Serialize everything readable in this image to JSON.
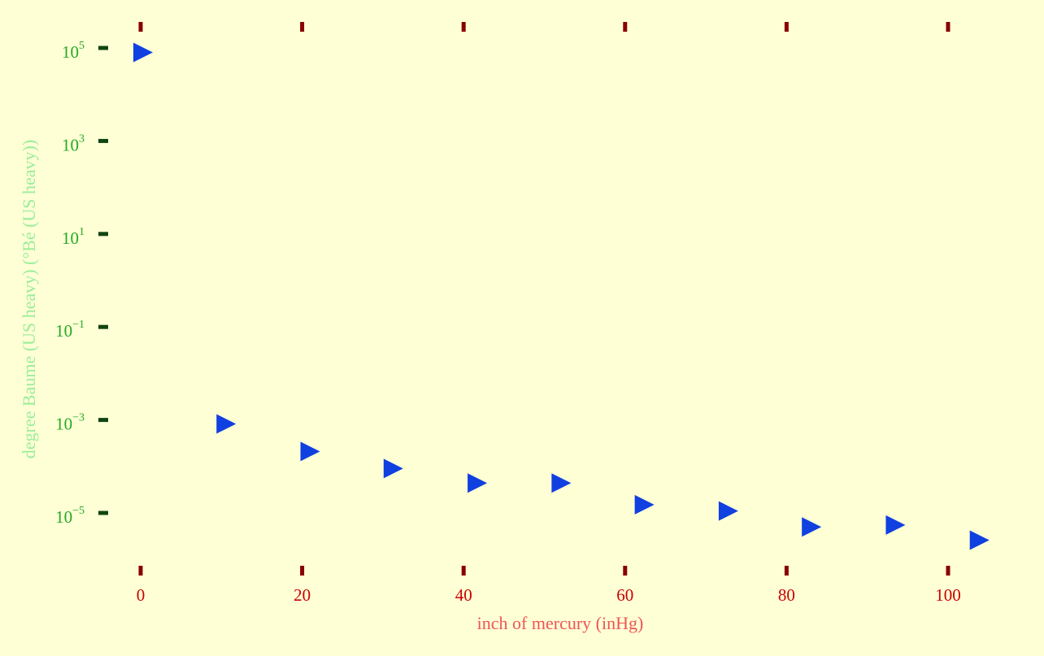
{
  "chart_data": {
    "type": "scatter",
    "xlabel": "inch of mercury (inHg)",
    "ylabel": "degree Baume (US heavy) (°Bé (US heavy))",
    "yscale": "log",
    "xlim": [
      0,
      100
    ],
    "ylim_exp": [
      -5,
      5
    ],
    "xticks": [
      0,
      20,
      40,
      60,
      80,
      100
    ],
    "yticks_exp": [
      5,
      3,
      1,
      -1,
      -3,
      -5
    ],
    "grid": false,
    "marker": "triangle-right",
    "colors": {
      "marker": "#1040e0",
      "xtick": "#880000",
      "ytick": "#114411",
      "xtick_label": "#cc0000",
      "ytick_label": "#22aa22",
      "xaxis_title": "#ee5555",
      "yaxis_title": "#99ee99",
      "background": "#ffffd6"
    },
    "series": [
      {
        "x": [
          0.2,
          10.5,
          20.9,
          31.2,
          41.6,
          52.0,
          62.3,
          72.7,
          83.0,
          93.4,
          103.8
        ],
        "y": [
          80000,
          0.00082,
          0.00021,
          9e-05,
          4.4e-05,
          4.4e-05,
          1.5e-05,
          1.1e-05,
          5e-06,
          5.5e-06,
          2.6e-06
        ]
      }
    ]
  }
}
